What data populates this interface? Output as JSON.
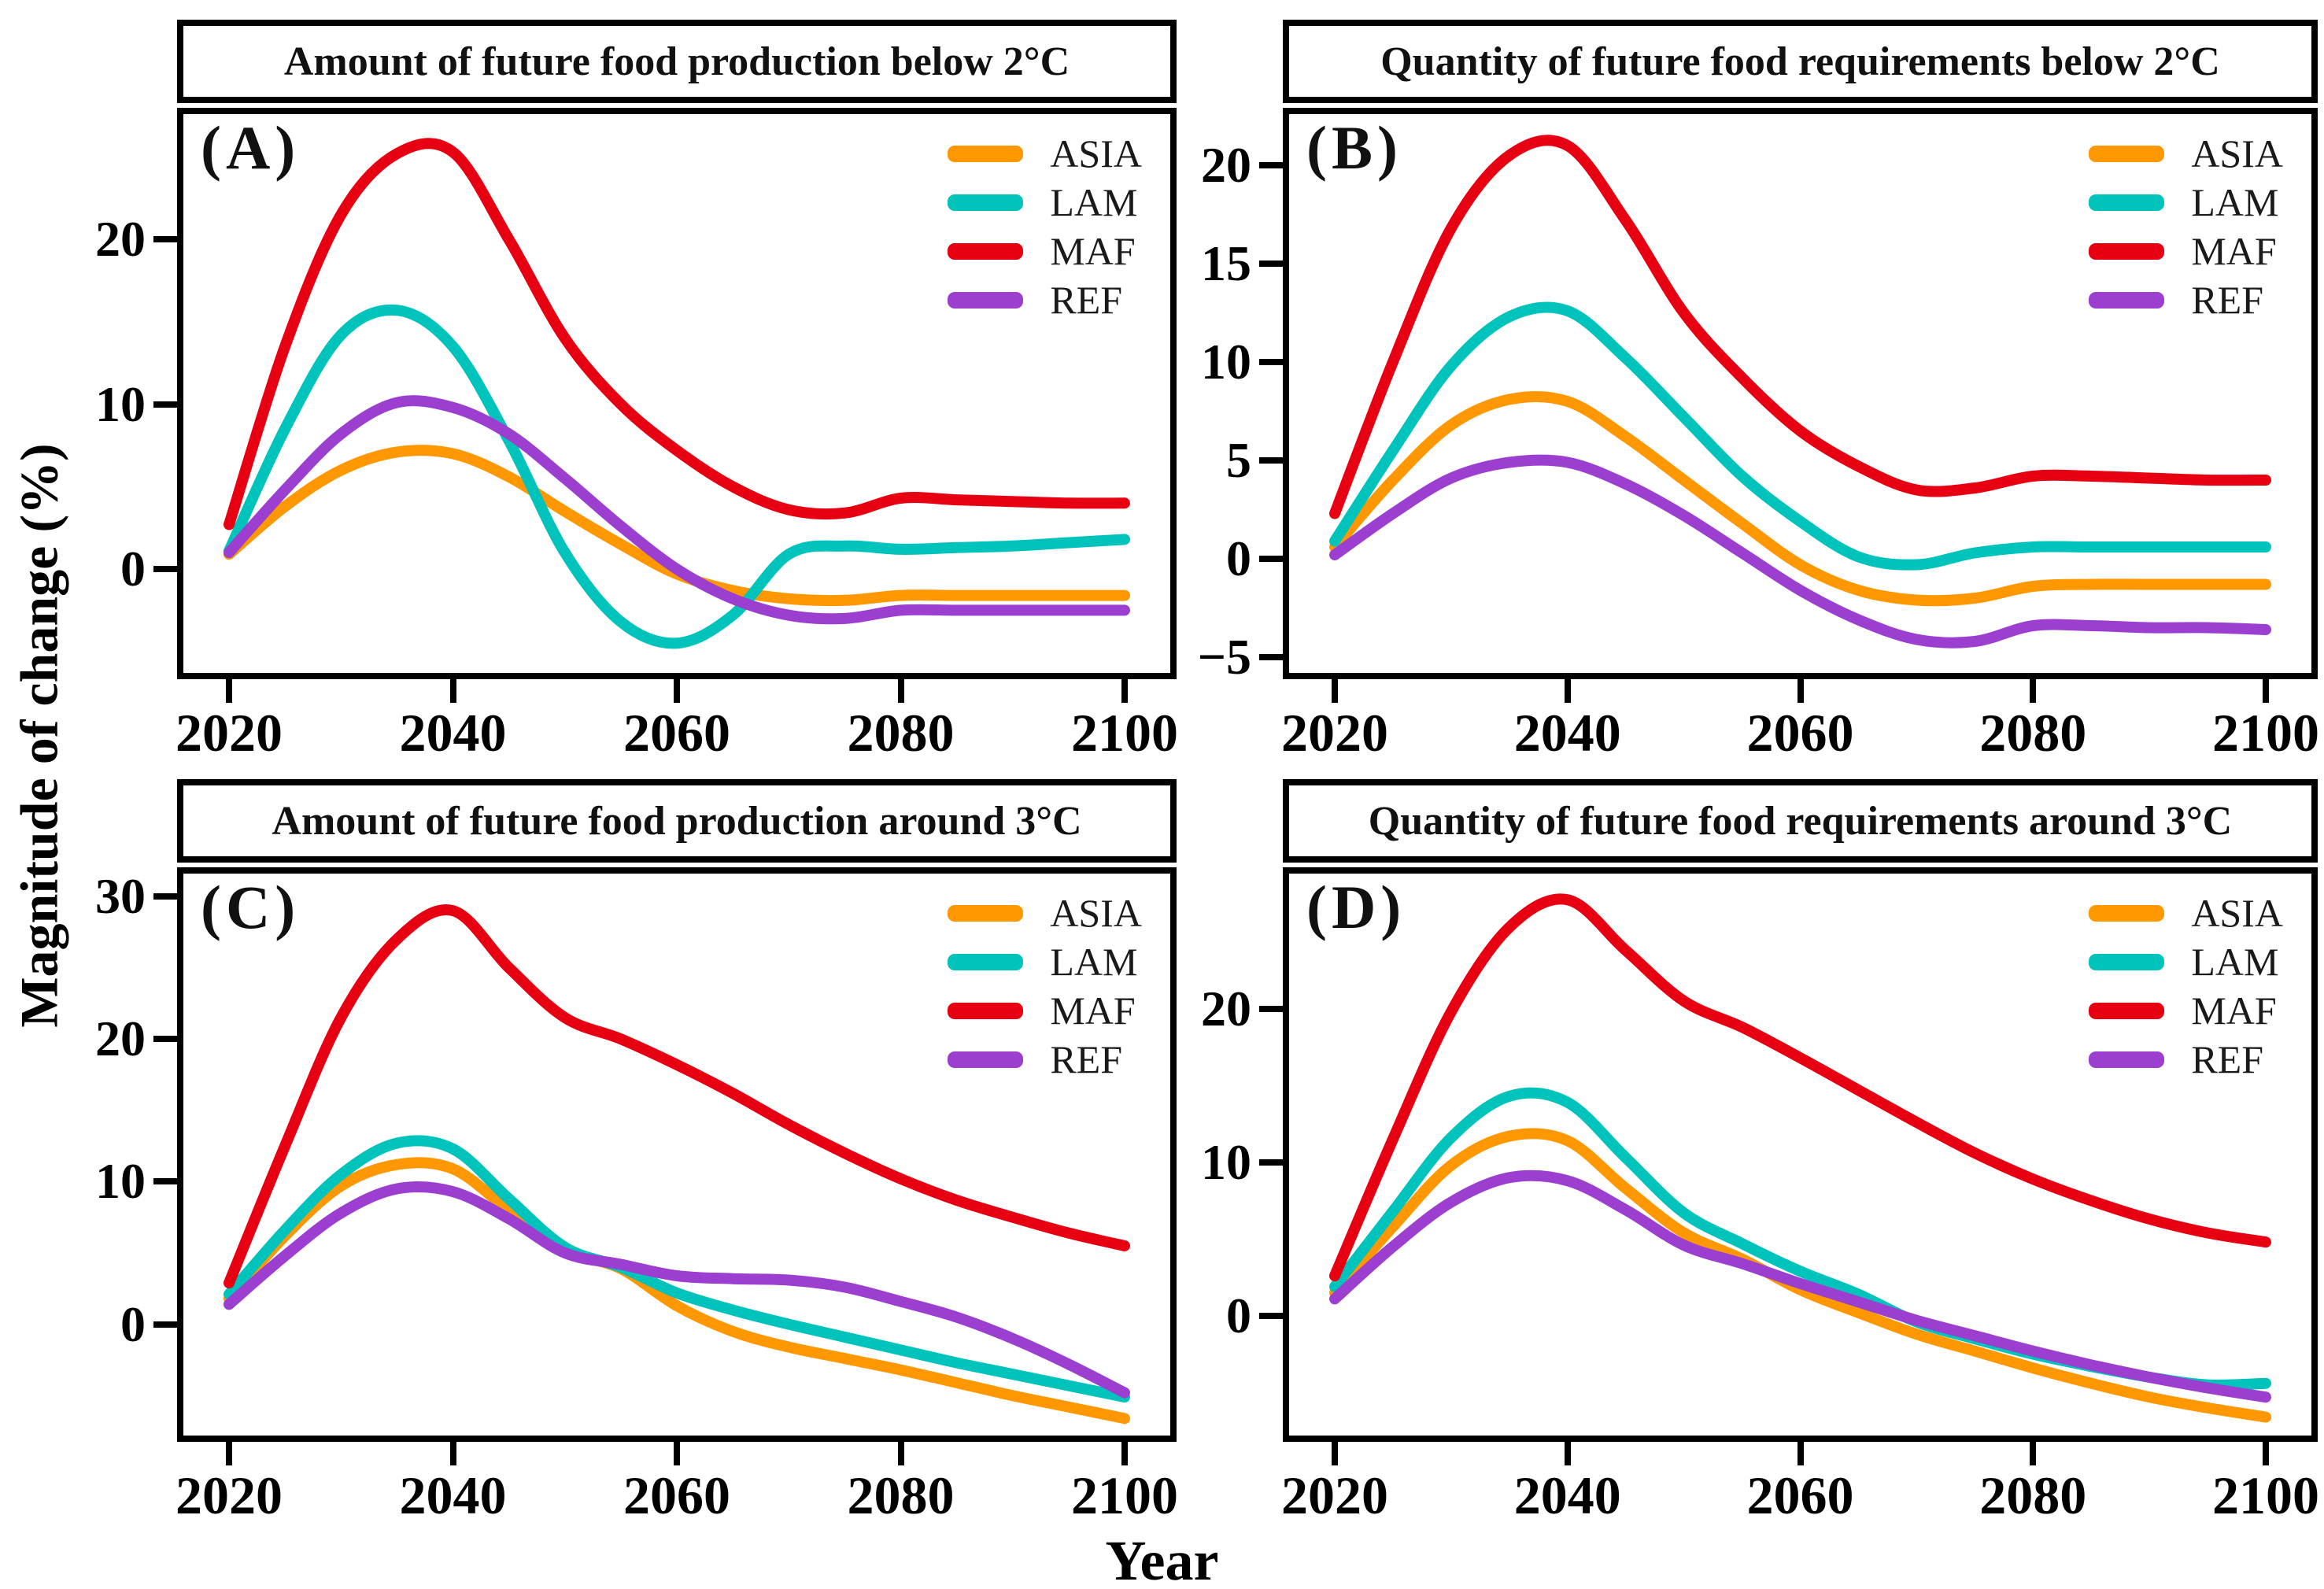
{
  "figure": {
    "ylabel": "Magnitude of change (%)",
    "xlabel": "Year",
    "background_color": "#ffffff",
    "frame_color": "#000000"
  },
  "legend": {
    "position": "top-right",
    "items": [
      {
        "label": "ASIA",
        "color": "#FF9800"
      },
      {
        "label": "LAM",
        "color": "#00C4BC"
      },
      {
        "label": "MAF",
        "color": "#E60012"
      },
      {
        "label": "REF",
        "color": "#9C3FD0"
      }
    ]
  },
  "chart_data": [
    {
      "id": "A",
      "letter": "(A)",
      "title": "Amount of future food production below 2°C",
      "type": "line",
      "grid": false,
      "x": [
        2020,
        2025,
        2030,
        2035,
        2040,
        2045,
        2050,
        2055,
        2060,
        2065,
        2070,
        2075,
        2080,
        2085,
        2090,
        2095,
        2100
      ],
      "xticks": [
        2020,
        2040,
        2060,
        2080,
        2100
      ],
      "yticks": [
        0,
        10,
        20
      ],
      "ylim": [
        -6.3,
        27.6
      ],
      "series": [
        {
          "name": "ASIA",
          "values": [
            0.9,
            3.8,
            6.0,
            7.1,
            7.0,
            5.6,
            3.5,
            1.5,
            -0.3,
            -1.3,
            -1.8,
            -1.9,
            -1.6,
            -1.6,
            -1.6,
            -1.6,
            -1.6
          ]
        },
        {
          "name": "LAM",
          "values": [
            1.1,
            8.5,
            14.2,
            15.7,
            13.5,
            7.8,
            1.0,
            -3.2,
            -4.5,
            -2.8,
            0.9,
            1.4,
            1.2,
            1.3,
            1.4,
            1.6,
            1.8
          ]
        },
        {
          "name": "MAF",
          "values": [
            2.7,
            13.5,
            21.5,
            25.2,
            25.3,
            20.0,
            14.0,
            10.0,
            7.2,
            5.0,
            3.6,
            3.4,
            4.3,
            4.2,
            4.1,
            4.0,
            4.0
          ]
        },
        {
          "name": "REF",
          "values": [
            1.0,
            4.8,
            8.2,
            10.1,
            9.8,
            8.2,
            5.5,
            2.6,
            0.0,
            -1.8,
            -2.8,
            -3.0,
            -2.5,
            -2.5,
            -2.5,
            -2.5,
            -2.5
          ]
        }
      ]
    },
    {
      "id": "B",
      "letter": "(B)",
      "title": "Quantity of future food requirements below 2°C",
      "type": "line",
      "grid": false,
      "x": [
        2020,
        2025,
        2030,
        2035,
        2040,
        2045,
        2050,
        2055,
        2060,
        2065,
        2070,
        2075,
        2080,
        2085,
        2090,
        2095,
        2100
      ],
      "xticks": [
        2020,
        2040,
        2060,
        2080,
        2100
      ],
      "yticks": [
        -5,
        0,
        5,
        10,
        15,
        20
      ],
      "ylim": [
        -5.8,
        22.6
      ],
      "series": [
        {
          "name": "ASIA",
          "values": [
            0.6,
            4.0,
            6.8,
            8.1,
            8.0,
            6.2,
            4.0,
            1.8,
            -0.3,
            -1.6,
            -2.1,
            -2.0,
            -1.4,
            -1.3,
            -1.3,
            -1.3,
            -1.3
          ]
        },
        {
          "name": "LAM",
          "values": [
            0.9,
            5.5,
            9.8,
            12.3,
            12.6,
            10.2,
            7.2,
            4.2,
            1.9,
            0.1,
            -0.3,
            0.3,
            0.6,
            0.6,
            0.6,
            0.6,
            0.6
          ]
        },
        {
          "name": "MAF",
          "values": [
            2.3,
            10.0,
            16.8,
            20.5,
            21.0,
            17.2,
            12.5,
            9.2,
            6.5,
            4.7,
            3.5,
            3.6,
            4.2,
            4.2,
            4.1,
            4.0,
            4.0
          ]
        },
        {
          "name": "REF",
          "values": [
            0.2,
            2.3,
            4.1,
            4.9,
            4.9,
            3.8,
            2.2,
            0.3,
            -1.6,
            -3.1,
            -4.1,
            -4.2,
            -3.4,
            -3.4,
            -3.5,
            -3.5,
            -3.6
          ]
        }
      ]
    },
    {
      "id": "C",
      "letter": "(C)",
      "title": "Amount of future food production around 3°C",
      "type": "line",
      "grid": false,
      "x": [
        2020,
        2025,
        2030,
        2035,
        2040,
        2045,
        2050,
        2055,
        2060,
        2065,
        2070,
        2075,
        2080,
        2085,
        2090,
        2095,
        2100
      ],
      "xticks": [
        2020,
        2040,
        2060,
        2080,
        2100
      ],
      "yticks": [
        0,
        10,
        20,
        30
      ],
      "ylim": [
        -7.8,
        31.6
      ],
      "series": [
        {
          "name": "ASIA",
          "values": [
            1.8,
            6.2,
            9.7,
            11.2,
            10.9,
            8.0,
            5.2,
            3.9,
            1.3,
            -0.5,
            -1.6,
            -2.4,
            -3.2,
            -4.1,
            -5.0,
            -5.8,
            -6.6
          ]
        },
        {
          "name": "LAM",
          "values": [
            2.1,
            6.6,
            10.5,
            12.7,
            12.3,
            8.8,
            5.4,
            4.0,
            2.2,
            1.0,
            0.0,
            -0.9,
            -1.8,
            -2.7,
            -3.5,
            -4.3,
            -5.1
          ]
        },
        {
          "name": "MAF",
          "values": [
            2.9,
            12.5,
            21.5,
            27.0,
            29.0,
            25.0,
            21.5,
            20.0,
            18.2,
            16.2,
            14.0,
            12.0,
            10.2,
            8.7,
            7.5,
            6.4,
            5.5
          ]
        },
        {
          "name": "REF",
          "values": [
            1.4,
            4.8,
            7.8,
            9.5,
            9.3,
            7.4,
            5.0,
            4.2,
            3.4,
            3.2,
            3.1,
            2.6,
            1.6,
            0.5,
            -1.0,
            -2.8,
            -4.8
          ]
        }
      ]
    },
    {
      "id": "D",
      "letter": "(D)",
      "title": "Quantity of future food requirements around 3°C",
      "type": "line",
      "grid": false,
      "x": [
        2020,
        2025,
        2030,
        2035,
        2040,
        2045,
        2050,
        2055,
        2060,
        2065,
        2070,
        2075,
        2080,
        2085,
        2090,
        2095,
        2100
      ],
      "xticks": [
        2020,
        2040,
        2060,
        2080,
        2100
      ],
      "yticks": [
        0,
        10,
        20
      ],
      "ylim": [
        -7.8,
        28.8
      ],
      "series": [
        {
          "name": "ASIA",
          "values": [
            1.5,
            5.8,
            9.8,
            11.7,
            11.4,
            8.3,
            5.4,
            3.7,
            1.7,
            0.2,
            -1.2,
            -2.3,
            -3.4,
            -4.4,
            -5.3,
            -6.0,
            -6.6
          ]
        },
        {
          "name": "LAM",
          "values": [
            1.9,
            6.8,
            11.6,
            14.3,
            13.9,
            10.3,
            6.7,
            4.7,
            2.9,
            1.4,
            -0.4,
            -1.5,
            -2.5,
            -3.3,
            -4.0,
            -4.5,
            -4.4
          ]
        },
        {
          "name": "MAF",
          "values": [
            2.6,
            11.5,
            19.8,
            25.3,
            27.1,
            23.8,
            20.5,
            18.8,
            16.8,
            14.7,
            12.6,
            10.6,
            8.9,
            7.5,
            6.3,
            5.4,
            4.8
          ]
        },
        {
          "name": "REF",
          "values": [
            1.1,
            4.5,
            7.4,
            9.0,
            8.8,
            6.9,
            4.6,
            3.4,
            2.1,
            0.9,
            -0.3,
            -1.3,
            -2.3,
            -3.2,
            -4.0,
            -4.7,
            -5.3
          ]
        }
      ]
    }
  ]
}
